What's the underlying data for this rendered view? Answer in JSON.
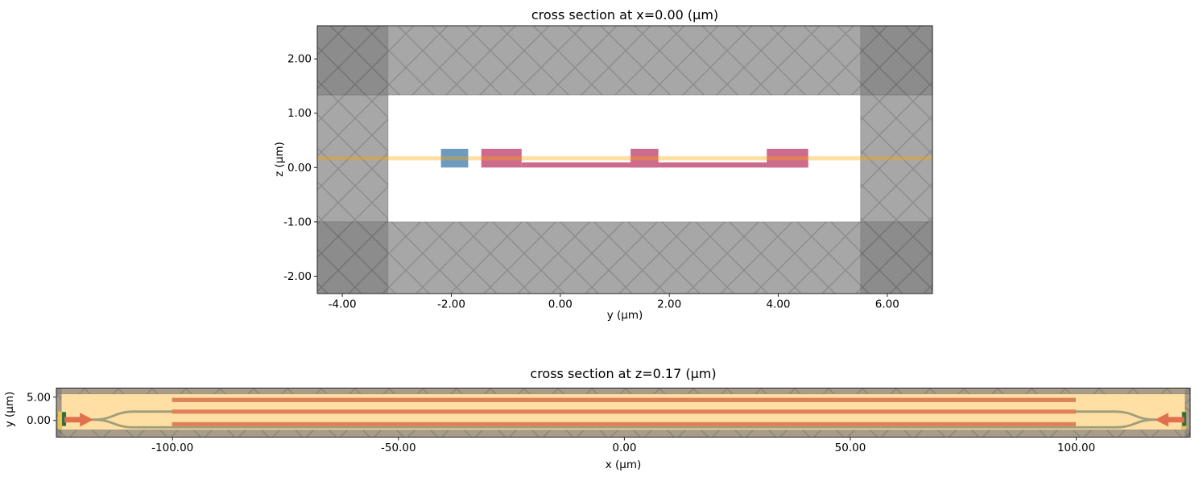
{
  "figure": {
    "kind": "simulation-cross-section-figure",
    "background": "#ffffff"
  },
  "colors": {
    "background": "#ffffff",
    "pml_fill": "rgba(128,128,128,0.69)",
    "hatch_line": "rgba(70,70,70,0.28)",
    "pml_edge": "rgba(80,80,80,0.30)",
    "core_blue": "#6d9bc0",
    "doped_pink": "#cc6b8e",
    "plane_orange": "rgba(255,165,0,0.36)",
    "overlay_orange": "rgba(255,165,0,0.36)",
    "source_green": "#2f6d3e",
    "monitor_gold": "#eac258",
    "arrow_orange": "#e0714e",
    "spine": "#222222",
    "tick": "#222222"
  },
  "chart_data": [
    {
      "type": "cross_section",
      "title": "cross section at x=0.00 (μm)",
      "xlabel": "y (μm)",
      "ylabel": "z (μm)",
      "xlim": [
        -4.46,
        6.83
      ],
      "ylim": [
        -2.32,
        2.61
      ],
      "xticks": [
        -4,
        -2,
        0,
        2,
        4,
        6
      ],
      "xtick_labels": [
        "-4.00",
        "-2.00",
        "0.00",
        "2.00",
        "4.00",
        "6.00"
      ],
      "yticks": [
        2,
        1,
        0,
        -1,
        -2
      ],
      "ytick_labels": [
        "2.00",
        "1.00",
        "0.00",
        "-1.00",
        "-2.00"
      ],
      "grid": false,
      "sim_box": {
        "x": [
          -3.16,
          5.51
        ],
        "y": [
          -1.0,
          1.335
        ]
      },
      "structures": [
        {
          "name": "doped-slab",
          "x": [
            -0.71,
            4.55
          ],
          "y": [
            0,
            0.095
          ],
          "color": "#cc6b8e"
        },
        {
          "name": "contact-ridge-left",
          "x": [
            -1.45,
            -0.71
          ],
          "y": [
            0,
            0.345
          ],
          "color": "#cc6b8e"
        },
        {
          "name": "rib-over-waveguide",
          "x": [
            1.29,
            1.8
          ],
          "y": [
            0,
            0.345
          ],
          "color": "#cc6b8e"
        },
        {
          "name": "contact-ridge-right",
          "x": [
            3.79,
            4.55
          ],
          "y": [
            0,
            0.345
          ],
          "color": "#cc6b8e"
        },
        {
          "name": "waveguide-core",
          "x": [
            -2.19,
            -1.69
          ],
          "y": [
            0,
            0.345
          ],
          "color": "#6d9bc0"
        }
      ],
      "plane_indicator": {
        "value": 0.17,
        "halfwidth": 0.038
      }
    },
    {
      "type": "cross_section",
      "title": "cross section at z=0.17 (μm)",
      "xlabel": "x (μm)",
      "ylabel": "y (μm)",
      "xlim": [
        -125.7,
        125.2
      ],
      "ylim": [
        -3.6,
        6.95
      ],
      "xticks": [
        -100,
        -50,
        0,
        50,
        100
      ],
      "xtick_labels": [
        "-100.00",
        "-50.00",
        "0.00",
        "50.00",
        "100.00"
      ],
      "yticks": [
        5,
        0
      ],
      "ytick_labels": [
        "5.00",
        "0.00"
      ],
      "grid": false,
      "sim_box": {
        "x": [
          -124.6,
          124.1
        ],
        "y": [
          -2.05,
          5.71
        ]
      },
      "overlay_plane": true,
      "structures": [
        {
          "name": "doped-bar-top",
          "x": [
            -100.1,
            99.9
          ],
          "y": [
            3.95,
            4.85
          ],
          "color": "#cc6b8e"
        },
        {
          "name": "doped-bar-middle",
          "x": [
            -100.1,
            99.9
          ],
          "y": [
            1.45,
            2.33
          ],
          "color": "#cc6b8e"
        },
        {
          "name": "doped-bar-bottom",
          "x": [
            -100.1,
            99.9
          ],
          "y": [
            -1.25,
            -0.38
          ],
          "color": "#cc6b8e"
        }
      ],
      "waveguide": {
        "color": "#6d9bc0",
        "width_um": 0.5,
        "port_y": 0.15,
        "upper_arm_y": 1.89,
        "lower_arm_y": -1.5,
        "left_port_x": -124.6,
        "right_port_x": 124.1,
        "split_x": -117.5,
        "join_x": 117.5,
        "bend_end_x": -108.5,
        "bend_start_x": 108.5
      },
      "monitors": [
        {
          "name": "port-monitor-left",
          "x": [
            -125.35,
            -124.45
          ],
          "y": [
            -2.0,
            1.95
          ]
        },
        {
          "name": "port-monitor-right",
          "x": [
            123.25,
            124.35
          ],
          "y": [
            -2.0,
            1.95
          ]
        }
      ],
      "sources": [
        {
          "name": "mode-source-left",
          "plane_x": [
            -124.45,
            -123.55
          ],
          "plane_y": [
            -1.2,
            1.8
          ],
          "arrow": {
            "tail_x": -123.9,
            "base_x": -120.5,
            "tip_x": -117.5,
            "center_y": 0.15,
            "tail_halfheight": 0.6,
            "head_halfheight": 1.5
          }
        },
        {
          "name": "mode-source-right",
          "plane_x": [
            123.45,
            124.35
          ],
          "plane_y": [
            -1.2,
            1.8
          ],
          "arrow": {
            "tail_x": 123.9,
            "base_x": 120.4,
            "tip_x": 117.4,
            "center_y": 0.15,
            "tail_halfheight": 0.6,
            "head_halfheight": 1.5
          }
        }
      ]
    }
  ]
}
